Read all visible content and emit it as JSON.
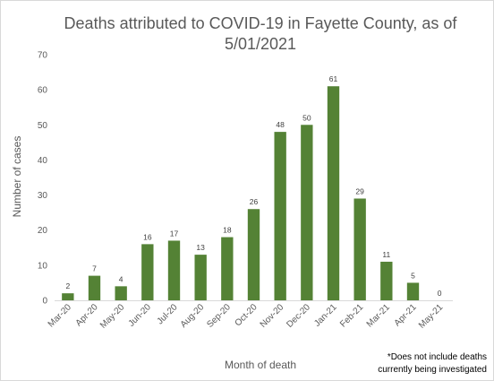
{
  "chart_data": {
    "type": "bar",
    "title_lines": [
      "Deaths attributed to COVID-19 in Fayette County, as of",
      "5/01/2021"
    ],
    "xlabel": "Month of death",
    "ylabel": "Number of cases",
    "categories": [
      "Mar-20",
      "Apr-20",
      "May-20",
      "Jun-20",
      "Jul-20",
      "Aug-20",
      "Sep-20",
      "Oct-20",
      "Nov-20",
      "Dec-20",
      "Jan-21",
      "Feb-21",
      "Mar-21",
      "Apr-21",
      "May-21"
    ],
    "values": [
      2,
      7,
      4,
      16,
      17,
      13,
      18,
      26,
      48,
      50,
      61,
      29,
      11,
      5,
      0
    ],
    "ylim": [
      0,
      70
    ],
    "yticks": [
      0,
      10,
      20,
      30,
      40,
      50,
      60,
      70
    ],
    "grid": false,
    "legend": "none",
    "bar_color": "#548235",
    "footnote_lines": [
      "*Does not include deaths",
      "currently being investigated"
    ]
  }
}
